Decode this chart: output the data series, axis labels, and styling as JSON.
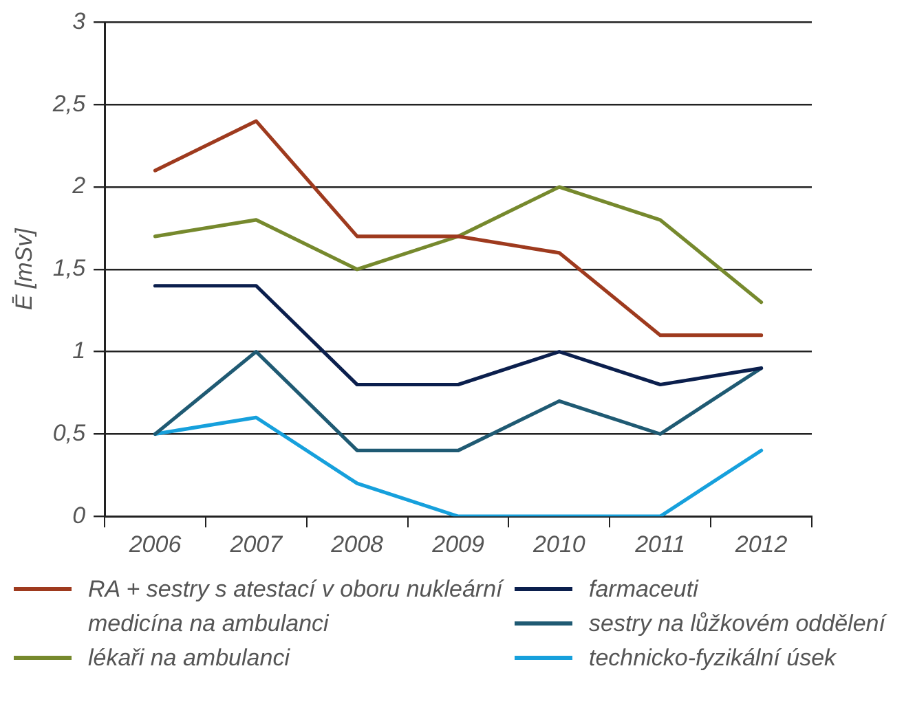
{
  "chart_data": {
    "type": "line",
    "ylabel": "Ē [mSv]",
    "categories": [
      "2006",
      "2007",
      "2008",
      "2009",
      "2010",
      "2011",
      "2012"
    ],
    "series": [
      {
        "name": "RA + sestry s  atestací  v oboru nukleární medicína na ambulanci",
        "color": "#9e3a1e",
        "values": [
          2.1,
          2.4,
          1.7,
          1.7,
          1.6,
          1.1,
          1.1
        ]
      },
      {
        "name": "lékaři na ambulanci",
        "color": "#76892d",
        "values": [
          1.7,
          1.8,
          1.5,
          1.7,
          2.0,
          1.8,
          1.3
        ]
      },
      {
        "name": "farmaceuti",
        "color": "#0b1f4d",
        "values": [
          1.4,
          1.4,
          0.8,
          0.8,
          1.0,
          0.8,
          0.9
        ]
      },
      {
        "name": "sestry na lůžkovém oddělení",
        "color": "#1f5a73",
        "values": [
          0.5,
          1.0,
          0.4,
          0.4,
          0.7,
          0.5,
          0.9
        ]
      },
      {
        "name": "technicko-fyzikální úsek",
        "color": "#16a0dc",
        "values": [
          0.5,
          0.6,
          0.2,
          0,
          0,
          0,
          0.4
        ]
      }
    ],
    "ylim": [
      0,
      3
    ],
    "yticks": [
      0,
      {
        "value": 0.5,
        "label": "0,5"
      },
      1,
      {
        "value": 1.5,
        "label": "1,5"
      },
      2,
      {
        "value": 2.5,
        "label": "2,5"
      },
      3
    ],
    "grid": "y",
    "legend": "bottom",
    "marker": "none",
    "line_style": "solid"
  }
}
